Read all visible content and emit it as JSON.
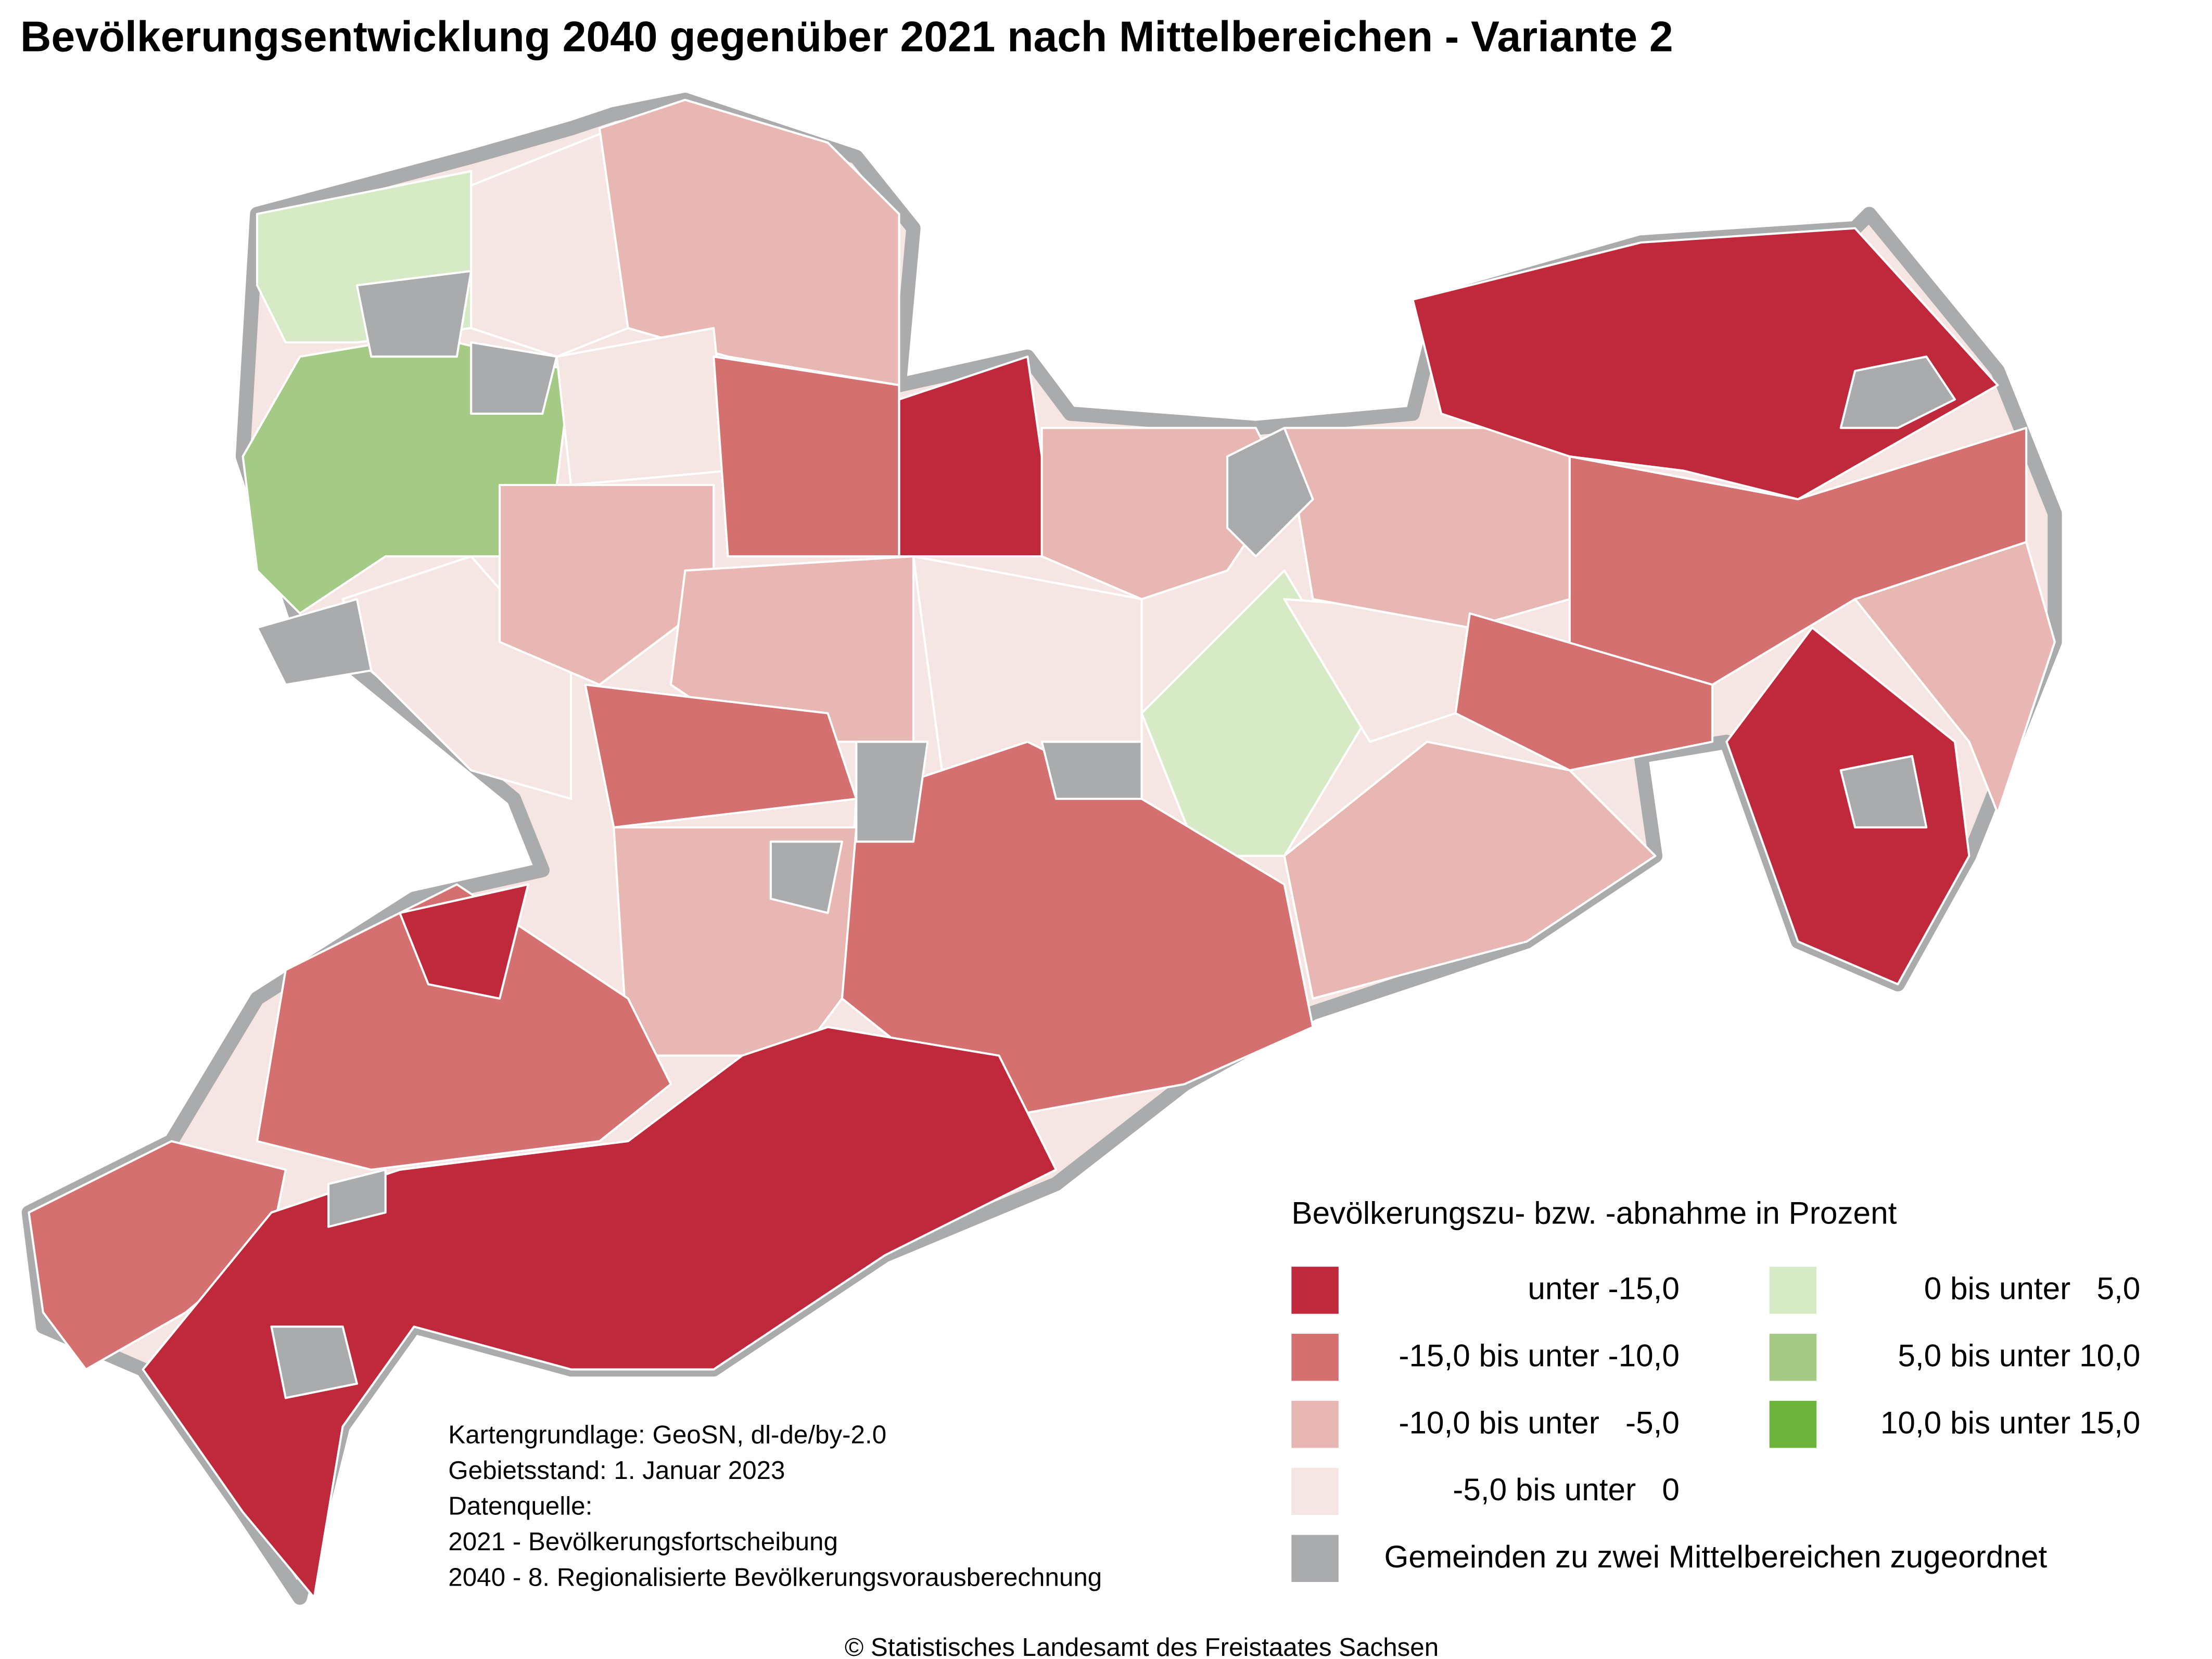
{
  "title": "Bevölkerungsentwicklung 2040 gegenüber 2021 nach Mittelbereichen - Variante 2",
  "legend": {
    "title": "Bevölkerungszu- bzw. -abnahme in Prozent",
    "columns": [
      [
        {
          "label": "unter -15,0",
          "color": "#c0283c"
        },
        {
          "label": "-15,0 bis unter -10,0",
          "color": "#d4706f"
        },
        {
          "label": "-10,0 bis unter   -5,0",
          "color": "#e8b7b3"
        },
        {
          "label": "-5,0 bis unter   0",
          "color": "#f6e6e3"
        },
        {
          "label": "Gemeinden zu zwei Mittelbereichen zugeordnet",
          "color": "#aaabad"
        }
      ],
      [
        {
          "label": "0 bis unter   5,0",
          "color": "#d6eac6"
        },
        {
          "label": "5,0 bis unter 10,0",
          "color": "#a4ca86"
        },
        {
          "label": "10,0 bis unter 15,0",
          "color": "#6cb43c"
        }
      ]
    ]
  },
  "notes": [
    "Kartengrundlage: GeoSN, dl-de/by-2.0",
    "Gebietsstand: 1. Januar 2023",
    "Datenquelle:",
    "2021 - Bevölkerungsfortscheibung",
    "2040 - 8. Regionalisierte Bevölkerungsvorausberechnung"
  ],
  "copyright": "© Statistisches Landesamt des Freistaates Sachsen"
}
